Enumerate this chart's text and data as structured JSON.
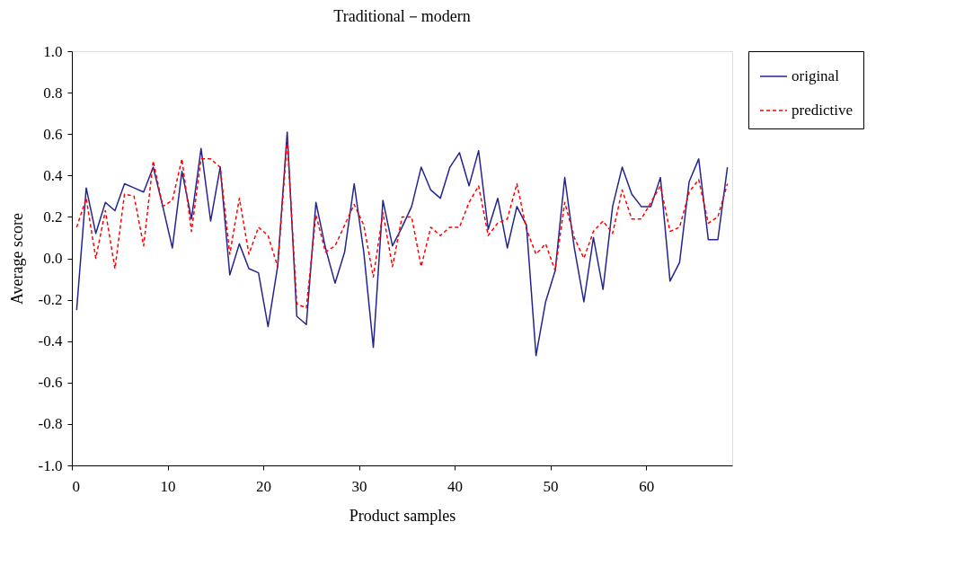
{
  "chart_data": {
    "type": "line",
    "title": "Traditional－modern",
    "xlabel": "Product samples",
    "ylabel": "Average score",
    "x": [
      0.5,
      1.5,
      2.5,
      3.5,
      4.5,
      5.5,
      6.5,
      7.5,
      8.5,
      9.5,
      10.5,
      11.5,
      12.5,
      13.5,
      14.5,
      15.5,
      16.5,
      17.5,
      18.5,
      19.5,
      20.5,
      21.5,
      22.5,
      23.5,
      24.5,
      25.5,
      26.5,
      27.5,
      28.5,
      29.5,
      30.5,
      31.5,
      32.5,
      33.5,
      34.5,
      35.5,
      36.5,
      37.5,
      38.5,
      39.5,
      40.5,
      41.5,
      42.5,
      43.5,
      44.5,
      45.5,
      46.5,
      47.5,
      48.5,
      49.5,
      50.5,
      51.5,
      52.5,
      53.5,
      54.5,
      55.5,
      56.5,
      57.5,
      58.5,
      59.5,
      60.5,
      61.5,
      62.5,
      63.5,
      64.5,
      65.5,
      66.5,
      67.5,
      68.5
    ],
    "series": [
      {
        "name": "original",
        "color": "#24248f",
        "line_style": "solid",
        "values": [
          -0.25,
          0.34,
          0.12,
          0.27,
          0.23,
          0.36,
          0.34,
          0.32,
          0.44,
          0.25,
          0.05,
          0.42,
          0.19,
          0.53,
          0.18,
          0.44,
          -0.08,
          0.07,
          -0.05,
          -0.07,
          -0.33,
          -0.04,
          0.61,
          -0.28,
          -0.32,
          0.27,
          0.05,
          -0.12,
          0.03,
          0.36,
          0.03,
          -0.43,
          0.28,
          0.06,
          0.15,
          0.25,
          0.44,
          0.33,
          0.29,
          0.44,
          0.51,
          0.35,
          0.52,
          0.14,
          0.29,
          0.05,
          0.25,
          0.16,
          -0.47,
          -0.21,
          -0.06,
          0.39,
          0.05,
          -0.21,
          0.1,
          -0.15,
          0.25,
          0.44,
          0.31,
          0.25,
          0.25,
          0.39,
          -0.11,
          -0.02,
          0.37,
          0.48,
          0.09,
          0.09,
          0.44
        ]
      },
      {
        "name": "predictive",
        "color": "#ff0000",
        "line_style": "dashed",
        "values": [
          0.15,
          0.29,
          0.0,
          0.23,
          -0.05,
          0.31,
          0.3,
          0.06,
          0.47,
          0.25,
          0.28,
          0.48,
          0.13,
          0.48,
          0.48,
          0.44,
          0.02,
          0.29,
          0.02,
          0.15,
          0.11,
          -0.04,
          0.57,
          -0.22,
          -0.24,
          0.21,
          0.03,
          0.06,
          0.16,
          0.26,
          0.16,
          -0.09,
          0.22,
          -0.04,
          0.2,
          0.2,
          -0.04,
          0.15,
          0.11,
          0.15,
          0.15,
          0.27,
          0.35,
          0.11,
          0.17,
          0.19,
          0.36,
          0.14,
          0.02,
          0.07,
          -0.06,
          0.27,
          0.1,
          0.0,
          0.13,
          0.18,
          0.12,
          0.33,
          0.19,
          0.19,
          0.27,
          0.35,
          0.13,
          0.15,
          0.32,
          0.38,
          0.17,
          0.2,
          0.36
        ]
      }
    ],
    "xlim": [
      0,
      69
    ],
    "xticks": [
      0,
      10,
      20,
      30,
      40,
      50,
      60
    ],
    "ylim": [
      -1.0,
      1.0
    ],
    "yticks": [
      {
        "value": 1.0,
        "label": "1.0"
      },
      {
        "value": 0.8,
        "label": "0.8"
      },
      {
        "value": 0.6,
        "label": "0.6"
      },
      {
        "value": 0.4,
        "label": "0.4"
      },
      {
        "value": 0.2,
        "label": "0.2"
      },
      {
        "value": 0.0,
        "label": "0.0"
      },
      {
        "value": -0.2,
        "label": "-0.2"
      },
      {
        "value": -0.4,
        "label": "-0.4"
      },
      {
        "value": -0.6,
        "label": "-0.6"
      },
      {
        "value": -0.8,
        "label": "-0.8"
      },
      {
        "value": -1.0,
        "label": "-1.0"
      }
    ],
    "grid": false,
    "legend": "top right",
    "marker": "none"
  }
}
